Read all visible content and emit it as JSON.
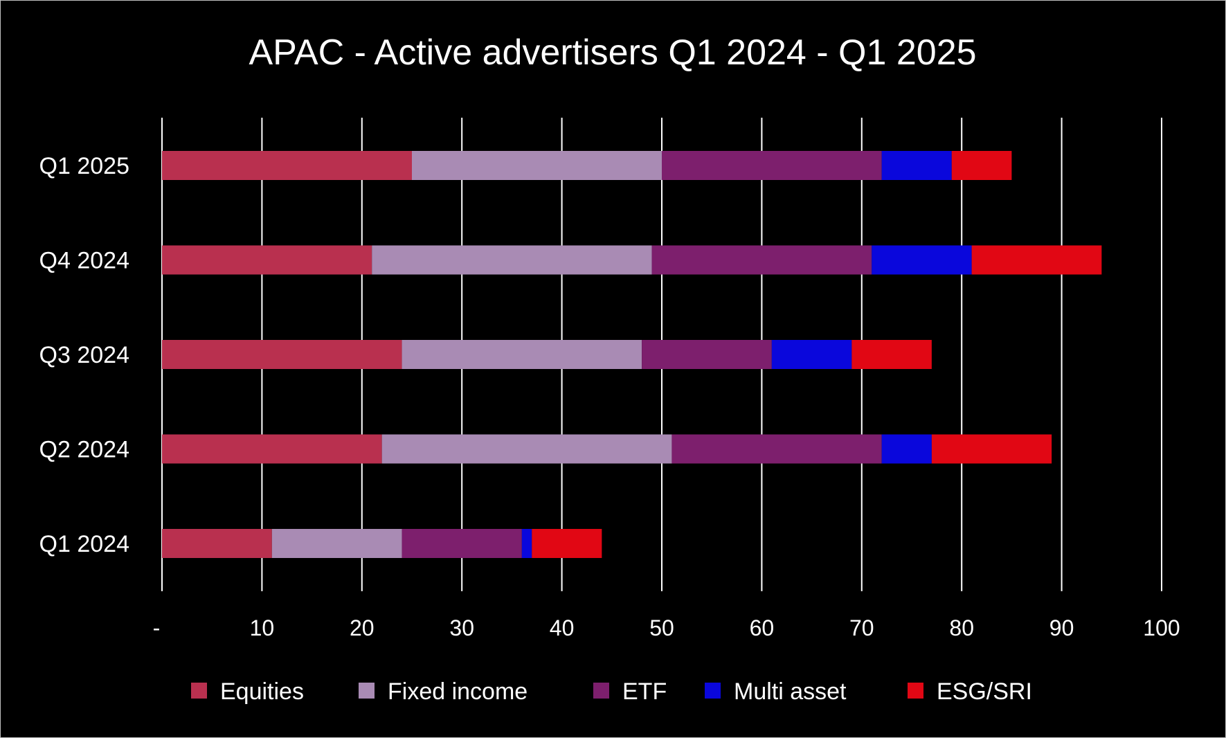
{
  "chart_data": {
    "type": "bar",
    "orientation": "horizontal",
    "stacked": true,
    "title": "APAC - Active advertisers Q1 2024 - Q1 2025",
    "xlabel": "",
    "ylabel": "",
    "categories": [
      "Q1 2025",
      "Q4 2024",
      "Q3 2024",
      "Q2 2024",
      "Q1 2024"
    ],
    "series": [
      {
        "name": "Equities",
        "color": "#b9304f",
        "values": [
          25,
          21,
          24,
          22,
          11
        ]
      },
      {
        "name": "Fixed income",
        "color": "#a98bb4",
        "values": [
          25,
          28,
          24,
          29,
          13
        ]
      },
      {
        "name": "ETF",
        "color": "#7d1f6d",
        "values": [
          22,
          22,
          13,
          21,
          12
        ]
      },
      {
        "name": "Multi asset",
        "color": "#0a07dc",
        "values": [
          7,
          10,
          8,
          5,
          1
        ]
      },
      {
        "name": "ESG/SRI",
        "color": "#e10714",
        "values": [
          6,
          13,
          8,
          12,
          7
        ]
      }
    ],
    "xlim": [
      0,
      100
    ],
    "xticks": [
      0,
      10,
      20,
      30,
      40,
      50,
      60,
      70,
      80,
      90,
      100
    ],
    "xtick_labels": [
      "-",
      "10",
      "20",
      "30",
      "40",
      "50",
      "60",
      "70",
      "80",
      "90",
      "100"
    ],
    "grid": "vertical",
    "legend_position": "bottom",
    "background": "#000000",
    "text_color": "#ffffff",
    "gridline_color": "#ffffff"
  }
}
